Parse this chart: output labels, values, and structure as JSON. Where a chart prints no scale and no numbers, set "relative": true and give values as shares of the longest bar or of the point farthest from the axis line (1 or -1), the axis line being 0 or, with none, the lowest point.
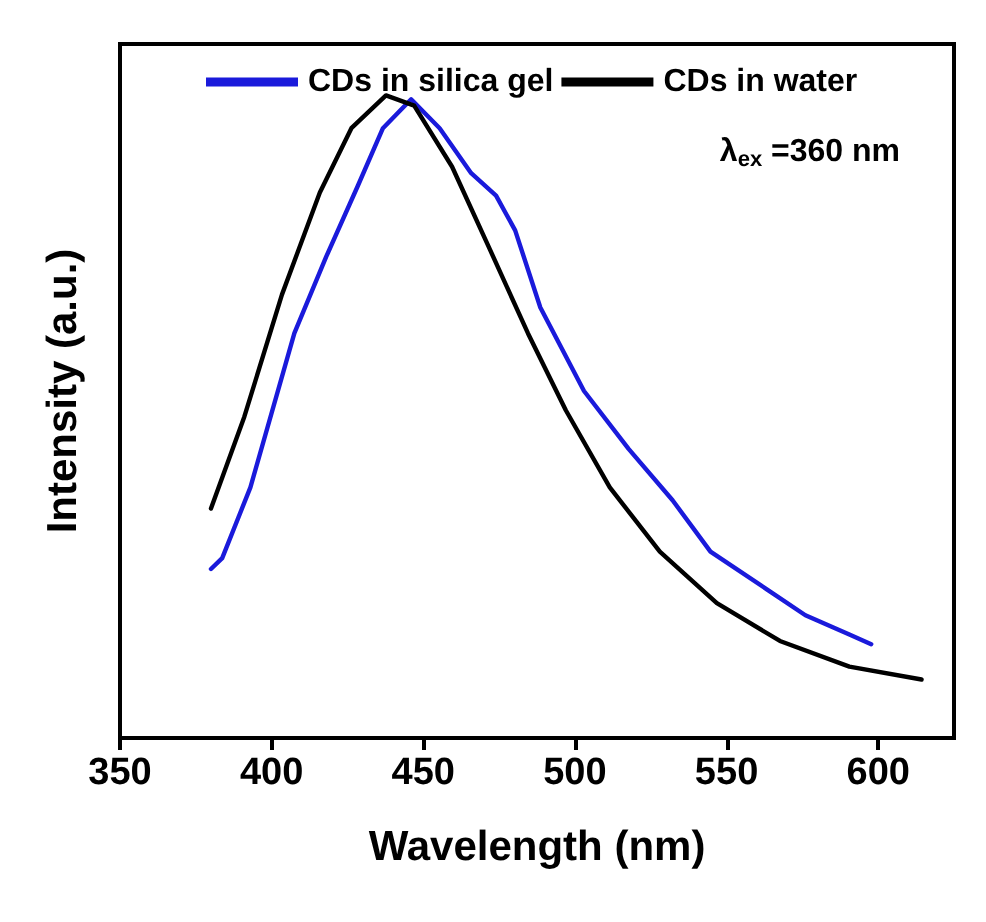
{
  "chart_data": {
    "type": "line",
    "relative": true,
    "xlabel": "Wavelength (nm)",
    "ylabel": "Intensity (a.u.)",
    "xlim": [
      350,
      625
    ],
    "xticks": [
      350,
      400,
      450,
      500,
      550,
      600
    ],
    "grid": false,
    "legend": "top",
    "marker": "none",
    "line_style": "solid",
    "annotations": [
      "λ$_{ex}$ =360 nm"
    ],
    "series": [
      {
        "name": "CDs in silica gel",
        "color": "#1a1adb",
        "x": [
          380,
          383.7,
          393,
          407.5,
          418,
          428.4,
          436.7,
          446,
          455.4,
          465.8,
          474,
          480.3,
          488.6,
          503,
          517.7,
          532.2,
          544.7,
          563.4,
          576,
          590.5,
          597.7
        ],
        "values": [
          0.263,
          0.28,
          0.39,
          0.63,
          0.749,
          0.859,
          0.949,
          0.994,
          0.949,
          0.879,
          0.844,
          0.79,
          0.67,
          0.54,
          0.45,
          0.37,
          0.29,
          0.231,
          0.191,
          0.161,
          0.146
        ]
      },
      {
        "name": "CDs in water",
        "color": "#000000",
        "x": [
          380,
          391,
          403.4,
          415.9,
          426.3,
          437.7,
          447,
          459.5,
          472,
          484.5,
          497,
          511.5,
          528,
          546.8,
          567.6,
          590.5,
          614.3
        ],
        "values": [
          0.357,
          0.5,
          0.69,
          0.849,
          0.949,
          1,
          0.984,
          0.889,
          0.76,
          0.63,
          0.51,
          0.39,
          0.29,
          0.21,
          0.151,
          0.111,
          0.091
        ]
      }
    ]
  }
}
